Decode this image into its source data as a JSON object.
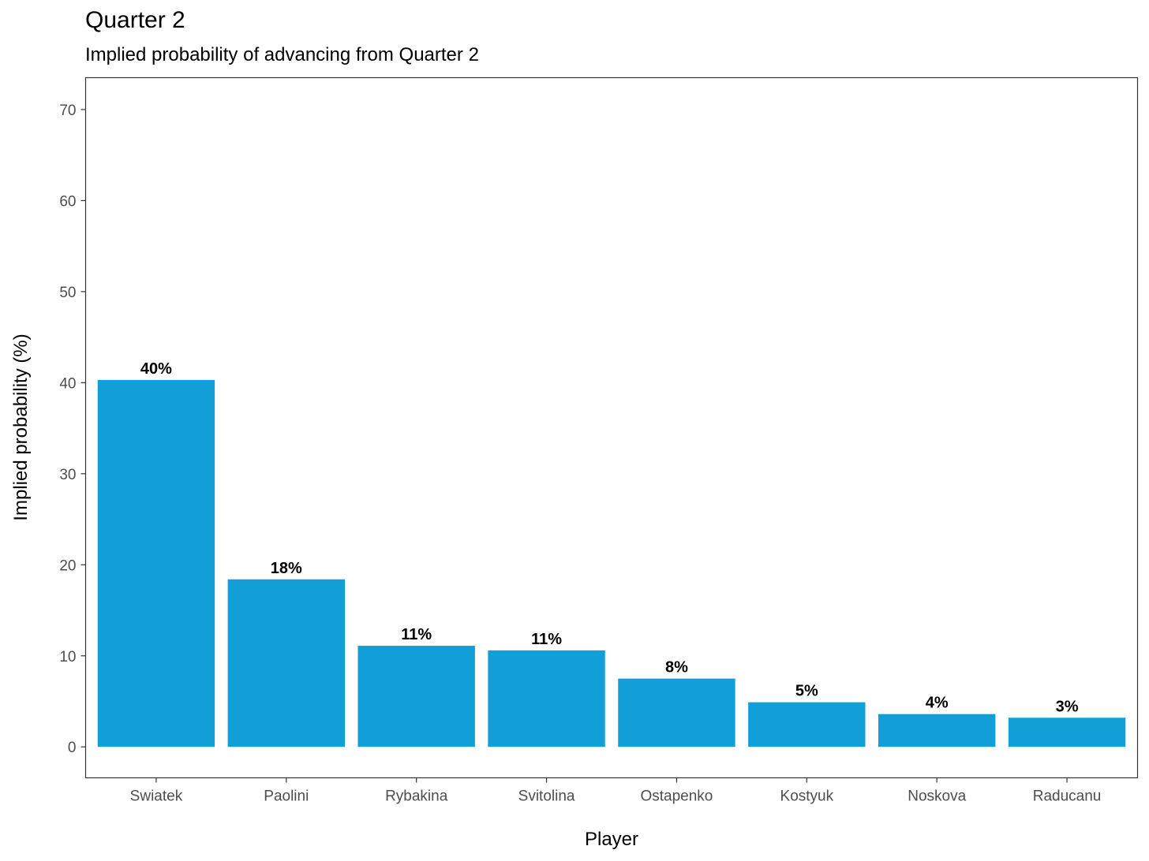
{
  "chart_data": {
    "type": "bar",
    "title": "Quarter 2",
    "subtitle": "Implied probability of advancing from Quarter 2",
    "xlabel": "Player",
    "ylabel": "Implied probability (%)",
    "categories": [
      "Swiatek",
      "Paolini",
      "Rybakina",
      "Svitolina",
      "Ostapenko",
      "Kostyuk",
      "Noskova",
      "Raducanu"
    ],
    "values": [
      40.3,
      18.4,
      11.1,
      10.6,
      7.5,
      4.9,
      3.6,
      3.2
    ],
    "data_labels": [
      "40%",
      "18%",
      "11%",
      "11%",
      "8%",
      "5%",
      "4%",
      "3%"
    ],
    "ylim": [
      -3.4,
      73.5
    ],
    "yticks": [
      0,
      10,
      20,
      30,
      40,
      50,
      60,
      70
    ],
    "bar_color": "#129ED6",
    "grid": false,
    "legend": "none"
  }
}
